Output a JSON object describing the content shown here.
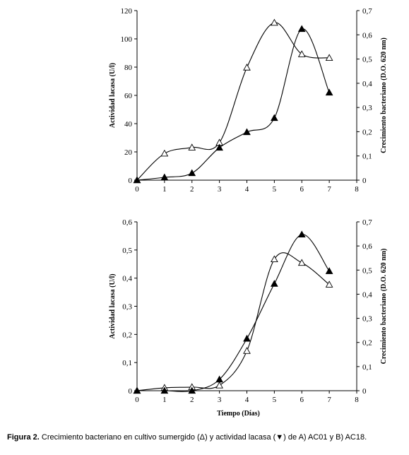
{
  "chart_data": [
    {
      "type": "line",
      "x_ticks": [
        "0",
        "1",
        "2",
        "3",
        "4",
        "5",
        "6",
        "7",
        "8"
      ],
      "y_left_ticks": [
        "0",
        "20",
        "40",
        "60",
        "80",
        "100",
        "120"
      ],
      "y_right_ticks": [
        "0",
        "0,1",
        "0,2",
        "0,3",
        "0,4",
        "0,5",
        "0,6",
        "0,7"
      ],
      "ylabel_left": "Actividad lacasa (U/l)",
      "ylabel_right": "Crecimiento bacteriano (D.O. 620 nm)",
      "xlabel": "",
      "xlim": [
        0,
        8
      ],
      "ylim_left": [
        0,
        120
      ],
      "ylim_right": [
        0,
        0.7
      ],
      "series": [
        {
          "marker": "open-triangle",
          "axis": "right",
          "x": [
            0,
            1,
            2,
            3,
            4,
            5,
            6,
            7
          ],
          "y": [
            0,
            0.11,
            0.135,
            0.155,
            0.465,
            0.65,
            0.52,
            0.505
          ]
        },
        {
          "marker": "filled-triangle",
          "axis": "left",
          "x": [
            0,
            1,
            2,
            3,
            4,
            5,
            6,
            7
          ],
          "y": [
            0,
            2,
            5,
            23,
            34,
            44,
            107,
            62
          ]
        }
      ]
    },
    {
      "type": "line",
      "x_ticks": [
        "0",
        "1",
        "2",
        "3",
        "4",
        "5",
        "6",
        "7",
        "8"
      ],
      "y_left_ticks": [
        "0",
        "0,1",
        "0,2",
        "0,3",
        "0,4",
        "0,5",
        "0,6"
      ],
      "y_right_ticks": [
        "0",
        "0,1",
        "0,2",
        "0,3",
        "0,4",
        "0,5",
        "0,6",
        "0,7"
      ],
      "ylabel_left": "Actividad lacasa (U/l)",
      "ylabel_right": "Crecimiento bacteriano (D.O. 620 nm)",
      "xlabel": "Tiempo (Días)",
      "xlim": [
        0,
        8
      ],
      "ylim_left": [
        0,
        0.6
      ],
      "ylim_right": [
        0,
        0.7
      ],
      "series": [
        {
          "marker": "open-triangle",
          "axis": "right",
          "x": [
            0,
            1,
            2,
            3,
            4,
            5,
            6,
            7
          ],
          "y": [
            0,
            0.012,
            0.015,
            0.022,
            0.165,
            0.545,
            0.53,
            0.44
          ]
        },
        {
          "marker": "filled-triangle",
          "axis": "left",
          "x": [
            0,
            1,
            2,
            3,
            4,
            5,
            6,
            7
          ],
          "y": [
            0,
            0,
            0,
            0.04,
            0.185,
            0.38,
            0.555,
            0.425
          ]
        }
      ]
    }
  ],
  "caption": {
    "label": "Figura 2.",
    "text": " Crecimiento bacteriano en cultivo sumergido (Δ) y actividad lacasa (▼) de A) AC01 y B) AC18."
  }
}
